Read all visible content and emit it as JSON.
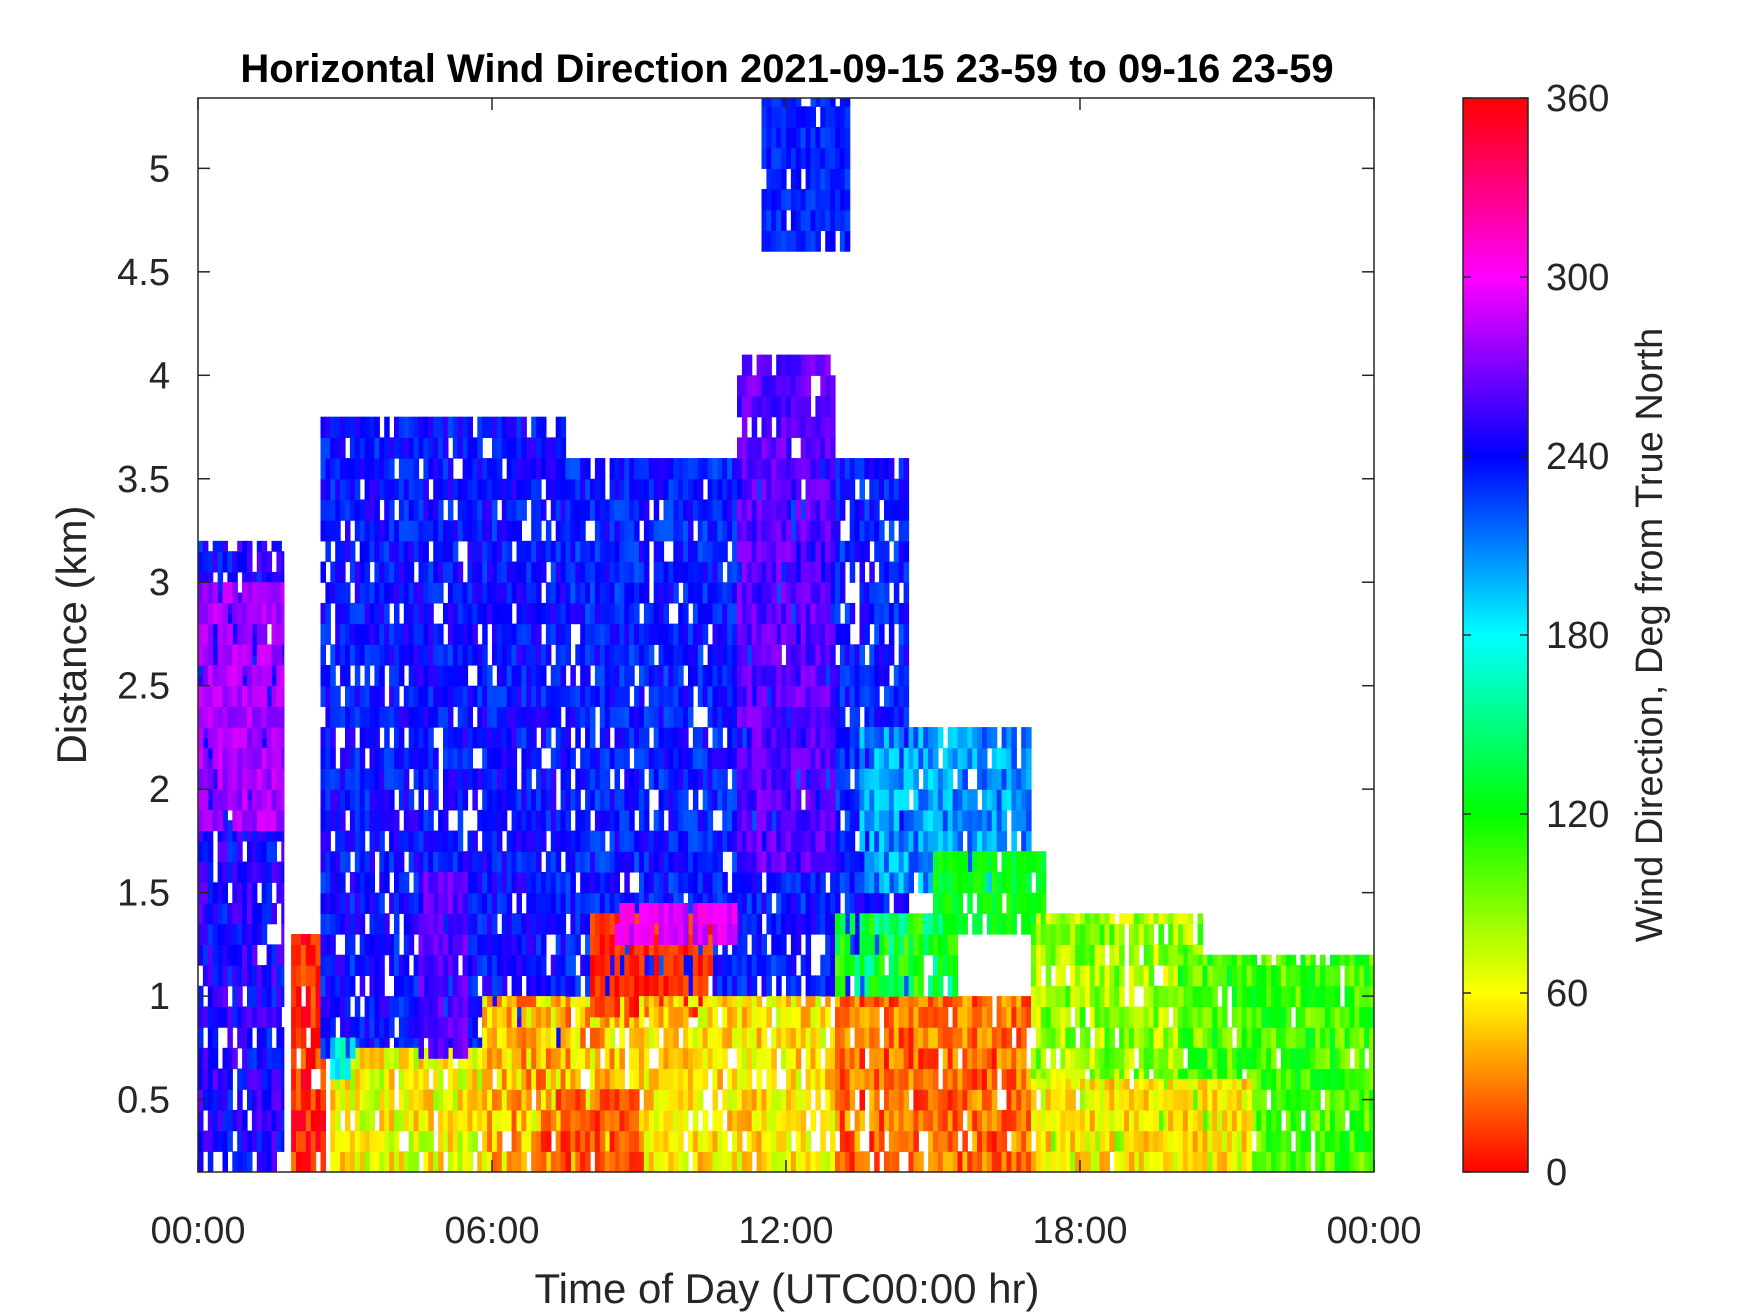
{
  "chart_data": {
    "type": "heatmap",
    "title": "Horizontal Wind Direction 2021-09-15 23-59 to 09-16 23-59",
    "xlabel": "Time of Day (UTC00:00 hr)",
    "ylabel": "Distance (km)",
    "colorbar_label": "Wind Direction, Deg from True North",
    "x_ticks": [
      "00:00",
      "06:00",
      "12:00",
      "18:00",
      "00:00"
    ],
    "x_tick_hours": [
      0,
      6,
      12,
      18,
      24
    ],
    "xlim_hours": [
      0,
      24
    ],
    "y_ticks": [
      "0.5",
      "1",
      "1.5",
      "2",
      "2.5",
      "3",
      "3.5",
      "4",
      "4.5",
      "5"
    ],
    "y_tick_values": [
      0.5,
      1,
      1.5,
      2,
      2.5,
      3,
      3.5,
      4,
      4.5,
      5
    ],
    "ylim": [
      0.15,
      5.34
    ],
    "colorbar_ticks": [
      "0",
      "60",
      "120",
      "180",
      "240",
      "300",
      "360"
    ],
    "colorbar_tick_values": [
      0,
      60,
      120,
      180,
      240,
      300,
      360
    ],
    "clim": [
      0,
      360
    ],
    "colormap": "hsv",
    "time_resolution_hours": 0.1,
    "height_resolution_km": 0.1,
    "regions": [
      {
        "t": [
          0,
          1.75
        ],
        "z": [
          0.15,
          3.2
        ],
        "dir": 245,
        "spread": 20
      },
      {
        "t": [
          0,
          1.75
        ],
        "z": [
          1.8,
          3.0
        ],
        "dir": 280,
        "spread": 12
      },
      {
        "t": [
          1.9,
          2.6
        ],
        "z": [
          0.15,
          1.3
        ],
        "dir": 8,
        "spread": 20
      },
      {
        "t": [
          2.5,
          7.5
        ],
        "z": [
          0.7,
          3.8
        ],
        "dir": 238,
        "spread": 16
      },
      {
        "t": [
          2.7,
          5.8
        ],
        "z": [
          0.15,
          0.75
        ],
        "dir": 62,
        "spread": 25
      },
      {
        "t": [
          4.5,
          5.5
        ],
        "z": [
          0.7,
          1.6
        ],
        "dir": 262,
        "spread": 12
      },
      {
        "t": [
          2.7,
          3.2
        ],
        "z": [
          0.6,
          0.8
        ],
        "dir": 180,
        "spread": 20
      },
      {
        "t": [
          5.8,
          9.0
        ],
        "z": [
          0.15,
          1.0
        ],
        "dir": 45,
        "spread": 28
      },
      {
        "t": [
          7.0,
          9.5
        ],
        "z": [
          0.15,
          0.55
        ],
        "dir": 18,
        "spread": 15
      },
      {
        "t": [
          7.5,
          14.5
        ],
        "z": [
          1.0,
          3.6
        ],
        "dir": 235,
        "spread": 16
      },
      {
        "t": [
          8.0,
          10.5
        ],
        "z": [
          0.9,
          1.4
        ],
        "dir": 10,
        "spread": 12
      },
      {
        "t": [
          8.5,
          11.0
        ],
        "z": [
          1.25,
          1.45
        ],
        "dir": 295,
        "spread": 15
      },
      {
        "t": [
          9.0,
          13.0
        ],
        "z": [
          0.15,
          1.0
        ],
        "dir": 55,
        "spread": 22
      },
      {
        "t": [
          11.0,
          13.0
        ],
        "z": [
          1.6,
          4.1
        ],
        "dir": 262,
        "spread": 14
      },
      {
        "t": [
          11.5,
          13.3
        ],
        "z": [
          4.6,
          5.34
        ],
        "dir": 232,
        "spread": 10
      },
      {
        "t": [
          13.0,
          17.0
        ],
        "z": [
          0.15,
          1.0
        ],
        "dir": 25,
        "spread": 22
      },
      {
        "t": [
          13.0,
          15.5
        ],
        "z": [
          1.0,
          1.4
        ],
        "dir": 130,
        "spread": 35
      },
      {
        "t": [
          13.5,
          17.0
        ],
        "z": [
          1.5,
          2.3
        ],
        "dir": 205,
        "spread": 22
      },
      {
        "t": [
          15.0,
          17.3
        ],
        "z": [
          1.3,
          1.7
        ],
        "dir": 125,
        "spread": 15
      },
      {
        "t": [
          17.0,
          20.5
        ],
        "z": [
          0.15,
          1.4
        ],
        "dir": 85,
        "spread": 28
      },
      {
        "t": [
          20.0,
          24.0
        ],
        "z": [
          0.15,
          1.2
        ],
        "dir": 105,
        "spread": 25
      },
      {
        "t": [
          17.0,
          21.5
        ],
        "z": [
          0.15,
          0.6
        ],
        "dir": 55,
        "spread": 20
      }
    ]
  }
}
